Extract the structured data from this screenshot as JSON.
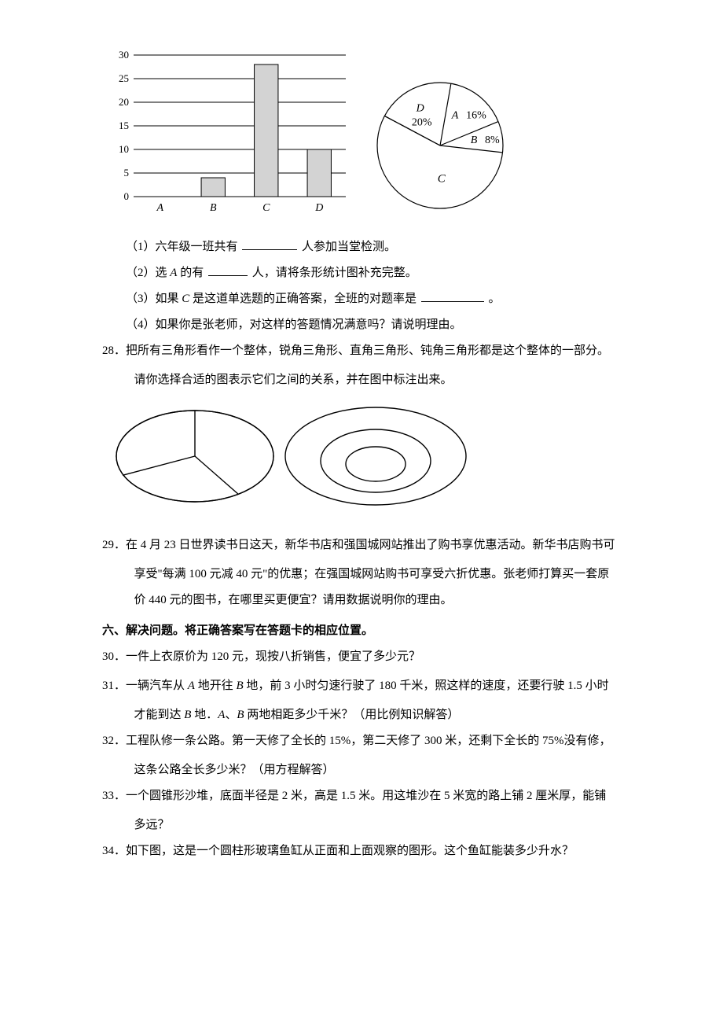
{
  "bar_chart": {
    "type": "bar",
    "categories": [
      "A",
      "B",
      "C",
      "D"
    ],
    "values": [
      null,
      4,
      28,
      10
    ],
    "ylim": [
      0,
      30
    ],
    "ytick_step": 5,
    "ytick_labels": [
      "0",
      "5",
      "10",
      "15",
      "20",
      "25",
      "30"
    ],
    "bar_fill": "#d3d3d3",
    "bar_stroke": "#000000",
    "grid_color": "#000000",
    "tick_fontsize": 13,
    "bar_width_ratio": 0.45
  },
  "pie_chart": {
    "type": "pie",
    "slices": [
      {
        "label": "A",
        "value_label": "16%",
        "percent": 16
      },
      {
        "label": "B",
        "value_label": "8%",
        "percent": 8
      },
      {
        "label": "C",
        "value_label": "",
        "percent": 56
      },
      {
        "label": "D",
        "value_label": "20%",
        "percent": 20
      }
    ],
    "fill": "#ffffff",
    "stroke": "#000000",
    "label_fontsize": 14
  },
  "q27": {
    "sub1_pre": "（1）六年级一班共有 ",
    "sub1_post": "人参加当堂检测。",
    "blank1_width": 70,
    "sub2_pre": "（2）选 ",
    "sub2_mid1": " 的有 ",
    "sub2_post": "人，请将条形统计图补充完整。",
    "blank2_width": 50,
    "sub3_pre": "（3）如果 ",
    "sub3_mid": " 是这道单选题的正确答案，全班的对题率是 ",
    "sub3_post": "。",
    "blank3_width": 80,
    "sub4": "（4）如果你是张老师，对这样的答题情况满意吗？请说明理由。",
    "A": "A",
    "C_label": "C"
  },
  "q28": {
    "num": "28．",
    "line1": "把所有三角形看作一个整体，锐角三角形、直角三角形、钝角三角形都是这个整体的一部分。",
    "line2": "请你选择合适的图表示它们之间的关系，并在图中标注出来。",
    "diagram": {
      "stroke": "#000000",
      "fill": "#ffffff"
    }
  },
  "q29": {
    "num": "29．",
    "line1": "在 4 月 23 日世界读书日这天，新华书店和强国城网站推出了购书享优惠活动。新华书店购书可",
    "line2": "享受\"每满 100 元减 40 元\"的优惠；在强国城网站购书可享受六折优惠。张老师打算买一套原",
    "line3": "价 440 元的图书，在哪里买更便宜？请用数据说明你的理由。"
  },
  "section6": "六、解决问题。将正确答案写在答题卡的相应位置。",
  "q30": {
    "num": "30．",
    "text": "一件上衣原价为 120 元，现按八折销售，便宜了多少元？"
  },
  "q31": {
    "num": "31．",
    "line1_pre": "一辆汽车从 ",
    "line1_mid1": " 地开往 ",
    "line1_mid2": " 地，前 3 小时匀速行驶了 180 千米，照这样的速度，还要行驶 1.5 小时",
    "line2_pre": "才能到达 ",
    "line2_mid1": " 地．",
    "line2_mid2": "、",
    "line2_post": " 两地相距多少千米？（用比例知识解答）",
    "A": "A",
    "B": "B"
  },
  "q32": {
    "num": "32．",
    "line1": "工程队修一条公路。第一天修了全长的 15%，第二天修了 300 米，还剩下全长的 75%没有修，",
    "line2": "这条公路全长多少米？（用方程解答）"
  },
  "q33": {
    "num": "33．",
    "line1": "一个圆锥形沙堆，底面半径是 2 米，高是 1.5 米。用这堆沙在 5 米宽的路上铺 2 厘米厚，能铺",
    "line2": "多远？"
  },
  "q34": {
    "num": "34．",
    "text": "如下图，这是一个圆柱形玻璃鱼缸从正面和上面观察的图形。这个鱼缸能装多少升水？"
  }
}
